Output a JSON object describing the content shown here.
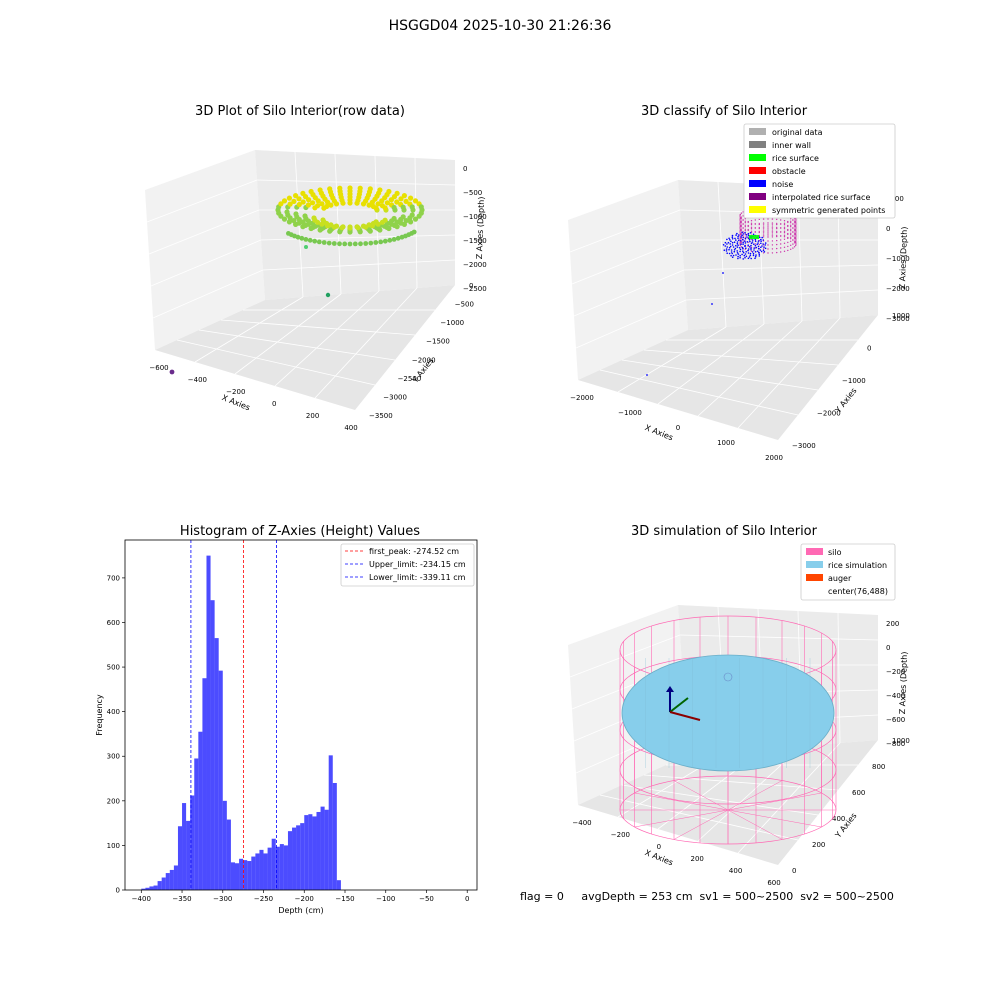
{
  "suptitle": "HSGGD04 2025-10-30 21:26:36",
  "footer": "flag = 0     avgDepth = 253 cm  sv1 = 500~2500  sv2 = 500~2500",
  "colors": {
    "hist_bar": "#0000ff",
    "peak_line": "#ff0000",
    "limit_line": "#0000ff",
    "silo": "#ff69b4",
    "rice_simulation": "#87ceeb",
    "auger": "#ff4500"
  },
  "chart_data": [
    {
      "type": "scatter",
      "panel": "raw",
      "title": "3D Plot of Silo Interior(row data)",
      "xlabel": "X Axies",
      "ylabel": "Y Axies",
      "zlabel": "Z Axies (Depth)",
      "x_ticks": [
        "−600",
        "−400",
        "−200",
        "0",
        "200",
        "400"
      ],
      "y_ticks": [
        "0",
        "−500",
        "−1000",
        "−1500",
        "−2000",
        "−2500",
        "−3000",
        "−3500"
      ],
      "z_ticks": [
        "0",
        "−500",
        "−1000",
        "−1500",
        "−2000",
        "−2500"
      ],
      "grid": true
    },
    {
      "type": "scatter",
      "panel": "classify",
      "title": "3D classify of Silo Interior",
      "xlabel": "X Axies",
      "ylabel": "Y Axies",
      "zlabel": "Z Axies (Depth)",
      "x_ticks": [
        "−2000",
        "−1000",
        "0",
        "1000",
        "2000"
      ],
      "y_ticks": [
        "1000",
        "0",
        "−1000",
        "−2000",
        "−3000"
      ],
      "z_ticks": [
        "1000",
        "0",
        "−1000",
        "−2000",
        "−3000"
      ],
      "legend_position": "top-right",
      "legend": [
        {
          "label": "original data",
          "color": "#b0b0b0"
        },
        {
          "label": "inner wall",
          "color": "#808080"
        },
        {
          "label": "rice surface",
          "color": "#00ff00"
        },
        {
          "label": "obstacle",
          "color": "#ff0000"
        },
        {
          "label": "noise",
          "color": "#0000ff"
        },
        {
          "label": "interpolated rice surface",
          "color": "#800080"
        },
        {
          "label": "symmetric generated points",
          "color": "#ffff00"
        }
      ],
      "grid": true
    },
    {
      "type": "bar",
      "panel": "histogram",
      "title": "Histogram of Z-Axies (Height) Values",
      "xlabel": "Depth (cm)",
      "ylabel": "Frequency",
      "xlim": [
        -420,
        12
      ],
      "ylim": [
        0,
        785
      ],
      "x_ticks": [
        -400,
        -350,
        -300,
        -250,
        -200,
        -150,
        -100,
        -50,
        0
      ],
      "x_tick_labels": [
        "−400",
        "−350",
        "−300",
        "−250",
        "−200",
        "−150",
        "−100",
        "−50",
        "0"
      ],
      "y_ticks": [
        0,
        100,
        200,
        300,
        400,
        500,
        600,
        700
      ],
      "bin_start": -400,
      "bin_width": 5,
      "values": [
        3,
        5,
        8,
        10,
        20,
        28,
        38,
        45,
        55,
        143,
        195,
        155,
        212,
        295,
        355,
        475,
        750,
        650,
        565,
        492,
        200,
        158,
        62,
        60,
        70,
        67,
        65,
        75,
        82,
        90,
        82,
        95,
        115,
        97,
        103,
        100,
        132,
        140,
        145,
        150,
        168,
        170,
        165,
        175,
        187,
        180,
        302,
        240,
        22
      ],
      "reference_lines": [
        {
          "label": "first_peak: -274.52 cm",
          "value": -274.52,
          "color": "#ff0000"
        },
        {
          "label": "Upper_limit: -234.15 cm",
          "value": -234.15,
          "color": "#0000ff"
        },
        {
          "label": "Lower_limit: -339.11 cm",
          "value": -339.11,
          "color": "#0000ff"
        }
      ],
      "legend_position": "top-right"
    },
    {
      "type": "surface",
      "panel": "simulation",
      "title": "3D simulation of Silo Interior",
      "xlabel": "X Axies",
      "ylabel": "Y Axies",
      "zlabel": "Z Axies (Depth)",
      "x_ticks": [
        "−400",
        "−200",
        "0",
        "200",
        "400",
        "600"
      ],
      "y_ticks": [
        "1000",
        "800",
        "600",
        "400",
        "200",
        "0"
      ],
      "z_ticks": [
        "200",
        "0",
        "−200",
        "−400",
        "−600",
        "−800"
      ],
      "legend_position": "top-right",
      "legend": [
        {
          "label": "silo",
          "color": "#ff69b4"
        },
        {
          "label": "rice simulation",
          "color": "#87ceeb"
        },
        {
          "label": "auger",
          "color": "#ff4500"
        },
        {
          "label": "center(76,488)",
          "color": ""
        }
      ],
      "grid": true
    }
  ]
}
